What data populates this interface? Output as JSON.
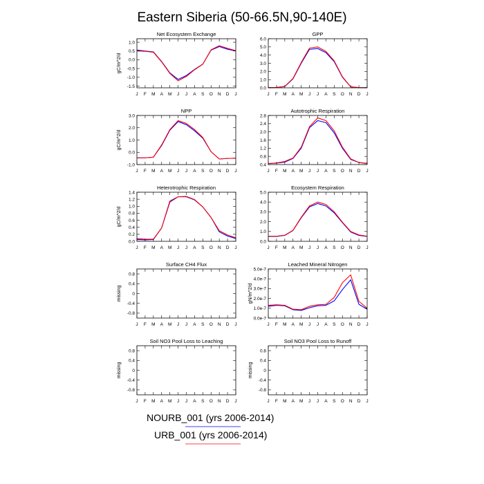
{
  "title": "Eastern Siberia (50-66.5N,90-140E)",
  "colors": {
    "nourb": "#0000ff",
    "urb": "#ff0000"
  },
  "legend": [
    {
      "label": "NOURB_001 (yrs 2006-2014)",
      "color": "#0000ff"
    },
    {
      "label": "URB_001 (yrs 2006-2014)",
      "color": "#ff0000"
    }
  ],
  "chart_data": [
    {
      "type": "line",
      "title": "Net Ecosystem Exchange",
      "ylabel": "gC/m^2/d",
      "categories": [
        "J",
        "F",
        "M",
        "A",
        "M",
        "J",
        "J",
        "A",
        "S",
        "O",
        "N",
        "D",
        "J"
      ],
      "ylim": [
        -1.6,
        1.2
      ],
      "yticks": [
        -1.5,
        -1.0,
        -0.5,
        0.0,
        0.5,
        1.0
      ],
      "ytick_labels": [
        "-1.5",
        "-1.0",
        "-0.5",
        "0.0",
        "0.5",
        "1.0"
      ],
      "series": [
        {
          "name": "NOURB_001",
          "color": "#0000ff",
          "values": [
            0.55,
            0.5,
            0.45,
            -0.1,
            -0.75,
            -1.12,
            -0.9,
            -0.55,
            -0.25,
            0.55,
            0.75,
            0.6,
            0.5
          ]
        },
        {
          "name": "URB_001",
          "color": "#ff0000",
          "values": [
            0.5,
            0.48,
            0.43,
            -0.12,
            -0.78,
            -1.2,
            -0.95,
            -0.57,
            -0.25,
            0.57,
            0.8,
            0.65,
            0.52
          ]
        }
      ]
    },
    {
      "type": "line",
      "title": "GPP",
      "ylabel": "",
      "categories": [
        "J",
        "F",
        "M",
        "A",
        "M",
        "J",
        "J",
        "A",
        "S",
        "O",
        "N",
        "D",
        "J"
      ],
      "ylim": [
        0,
        6
      ],
      "yticks": [
        0,
        1,
        2,
        3,
        4,
        5,
        6
      ],
      "ytick_labels": [
        "0.0",
        "1.0",
        "2.0",
        "3.0",
        "4.0",
        "5.0",
        "6.0"
      ],
      "series": [
        {
          "name": "NOURB_001",
          "color": "#0000ff",
          "values": [
            0.02,
            0.05,
            0.15,
            1.1,
            3.0,
            4.7,
            4.8,
            4.3,
            3.2,
            1.3,
            0.12,
            0.03,
            0.02
          ]
        },
        {
          "name": "URB_001",
          "color": "#ff0000",
          "values": [
            0.02,
            0.05,
            0.17,
            1.15,
            3.1,
            4.85,
            5.0,
            4.45,
            3.3,
            1.35,
            0.13,
            0.03,
            0.02
          ]
        }
      ]
    },
    {
      "type": "line",
      "title": "NPP",
      "ylabel": "gC/m^2/d",
      "categories": [
        "J",
        "F",
        "M",
        "A",
        "M",
        "J",
        "J",
        "A",
        "S",
        "O",
        "N",
        "D",
        "J"
      ],
      "ylim": [
        -1,
        3
      ],
      "yticks": [
        -1,
        0,
        1,
        2,
        3
      ],
      "ytick_labels": [
        "-1.0",
        "0.0",
        "1.0",
        "2.0",
        "3.0"
      ],
      "series": [
        {
          "name": "NOURB_001",
          "color": "#0000ff",
          "values": [
            -0.45,
            -0.45,
            -0.4,
            0.55,
            1.8,
            2.5,
            2.25,
            1.75,
            1.15,
            0.05,
            -0.55,
            -0.5,
            -0.48
          ]
        },
        {
          "name": "URB_001",
          "color": "#ff0000",
          "values": [
            -0.45,
            -0.45,
            -0.4,
            0.6,
            1.85,
            2.58,
            2.35,
            1.85,
            1.2,
            0.05,
            -0.55,
            -0.5,
            -0.48
          ]
        }
      ]
    },
    {
      "type": "line",
      "title": "Autotrophic Respiration",
      "ylabel": "",
      "categories": [
        "J",
        "F",
        "M",
        "A",
        "M",
        "J",
        "J",
        "A",
        "S",
        "O",
        "N",
        "D",
        "J"
      ],
      "ylim": [
        0.4,
        2.8
      ],
      "yticks": [
        0.4,
        0.8,
        1.2,
        1.6,
        2.0,
        2.4,
        2.8
      ],
      "ytick_labels": [
        "0.4",
        "0.8",
        "1.2",
        "1.6",
        "2.0",
        "2.4",
        "2.8"
      ],
      "series": [
        {
          "name": "NOURB_001",
          "color": "#0000ff",
          "values": [
            0.45,
            0.47,
            0.52,
            0.7,
            1.2,
            2.2,
            2.55,
            2.45,
            1.95,
            1.2,
            0.65,
            0.5,
            0.45
          ]
        },
        {
          "name": "URB_001",
          "color": "#ff0000",
          "values": [
            0.45,
            0.48,
            0.55,
            0.72,
            1.25,
            2.25,
            2.68,
            2.55,
            2.05,
            1.25,
            0.68,
            0.5,
            0.46
          ]
        }
      ]
    },
    {
      "type": "line",
      "title": "Heterotrophic Respiration",
      "ylabel": "gC/m^2/d",
      "categories": [
        "J",
        "F",
        "M",
        "A",
        "M",
        "J",
        "J",
        "A",
        "S",
        "O",
        "N",
        "D",
        "J"
      ],
      "ylim": [
        0,
        1.4
      ],
      "yticks": [
        0,
        0.2,
        0.4,
        0.6,
        0.8,
        1.0,
        1.2,
        1.4
      ],
      "ytick_labels": [
        "0.0",
        "0.2",
        "0.4",
        "0.6",
        "0.8",
        "1.0",
        "1.2",
        "1.4"
      ],
      "series": [
        {
          "name": "NOURB_001",
          "color": "#0000ff",
          "values": [
            0.05,
            0.04,
            0.05,
            0.38,
            1.12,
            1.27,
            1.27,
            1.18,
            0.98,
            0.68,
            0.27,
            0.15,
            0.08
          ]
        },
        {
          "name": "URB_001",
          "color": "#ff0000",
          "values": [
            0.08,
            0.06,
            0.06,
            0.38,
            1.15,
            1.27,
            1.28,
            1.19,
            0.98,
            0.68,
            0.3,
            0.18,
            0.1
          ]
        }
      ]
    },
    {
      "type": "line",
      "title": "Ecosystem Respiration",
      "ylabel": "",
      "categories": [
        "J",
        "F",
        "M",
        "A",
        "M",
        "J",
        "J",
        "A",
        "S",
        "O",
        "N",
        "D",
        "J"
      ],
      "ylim": [
        0,
        5
      ],
      "yticks": [
        0,
        1,
        2,
        3,
        4,
        5
      ],
      "ytick_labels": [
        "0.0",
        "1.0",
        "2.0",
        "3.0",
        "4.0",
        "5.0"
      ],
      "series": [
        {
          "name": "NOURB_001",
          "color": "#0000ff",
          "values": [
            0.5,
            0.5,
            0.6,
            1.1,
            2.4,
            3.5,
            3.85,
            3.6,
            2.9,
            1.9,
            0.95,
            0.6,
            0.5
          ]
        },
        {
          "name": "URB_001",
          "color": "#ff0000",
          "values": [
            0.52,
            0.52,
            0.62,
            1.12,
            2.45,
            3.6,
            4.0,
            3.75,
            3.0,
            1.95,
            1.0,
            0.65,
            0.52
          ]
        }
      ]
    },
    {
      "type": "line",
      "title": "Surface CH4 Flux",
      "ylabel": "missing",
      "categories": [
        "J",
        "F",
        "M",
        "A",
        "M",
        "J",
        "J",
        "A",
        "S",
        "O",
        "N",
        "D",
        "J"
      ],
      "ylim": [
        -1,
        1
      ],
      "yticks": [
        -0.8,
        -0.4,
        0,
        0.4,
        0.8
      ],
      "ytick_labels": [
        "-0.8",
        "-0.4",
        "0",
        "0.4",
        "0.8"
      ],
      "series": []
    },
    {
      "type": "line",
      "title": "Leached Mineral Nitrogen",
      "ylabel": "gN/m^2/d",
      "categories": [
        "J",
        "F",
        "M",
        "A",
        "M",
        "J",
        "J",
        "A",
        "S",
        "O",
        "N",
        "D",
        "J"
      ],
      "ylim": [
        0,
        5e-07
      ],
      "yticks": [
        0,
        1e-07,
        2e-07,
        3e-07,
        4e-07,
        5e-07
      ],
      "ytick_labels": [
        "0.0e-7",
        "1.0e-7",
        "2.0e-7",
        "3.0e-7",
        "4.0e-7",
        "5.0e-7"
      ],
      "series": [
        {
          "name": "NOURB_001",
          "color": "#0000ff",
          "values": [
            1.2e-07,
            1.3e-07,
            1.25e-07,
            8.5e-08,
            7.8e-08,
            1.05e-07,
            1.25e-07,
            1.3e-07,
            1.75e-07,
            2.9e-07,
            3.9e-07,
            1.4e-07,
            9e-08
          ]
        },
        {
          "name": "URB_001",
          "color": "#ff0000",
          "values": [
            1.3e-07,
            1.35e-07,
            1.3e-07,
            9e-08,
            8.5e-08,
            1.2e-07,
            1.35e-07,
            1.4e-07,
            2.1e-07,
            3.6e-07,
            4.4e-07,
            1.7e-07,
            1e-07
          ]
        }
      ]
    },
    {
      "type": "line",
      "title": "Soil NO3 Pool Loss to Leaching",
      "ylabel": "missing",
      "categories": [
        "J",
        "F",
        "M",
        "A",
        "M",
        "J",
        "J",
        "A",
        "S",
        "O",
        "N",
        "D",
        "J"
      ],
      "ylim": [
        -1,
        1
      ],
      "yticks": [
        -0.8,
        -0.4,
        0,
        0.4,
        0.8
      ],
      "ytick_labels": [
        "-0.8",
        "-0.4",
        "0",
        "0.4",
        "0.8"
      ],
      "series": []
    },
    {
      "type": "line",
      "title": "Soil NO3 Pool Loss to Runoff",
      "ylabel": "missing",
      "categories": [
        "J",
        "F",
        "M",
        "A",
        "M",
        "J",
        "J",
        "A",
        "S",
        "O",
        "N",
        "D",
        "J"
      ],
      "ylim": [
        -1,
        1
      ],
      "yticks": [
        -0.8,
        -0.4,
        0,
        0.4,
        0.8
      ],
      "ytick_labels": [
        "-0.8",
        "-0.4",
        "0",
        "0.4",
        "0.8"
      ],
      "series": []
    }
  ]
}
